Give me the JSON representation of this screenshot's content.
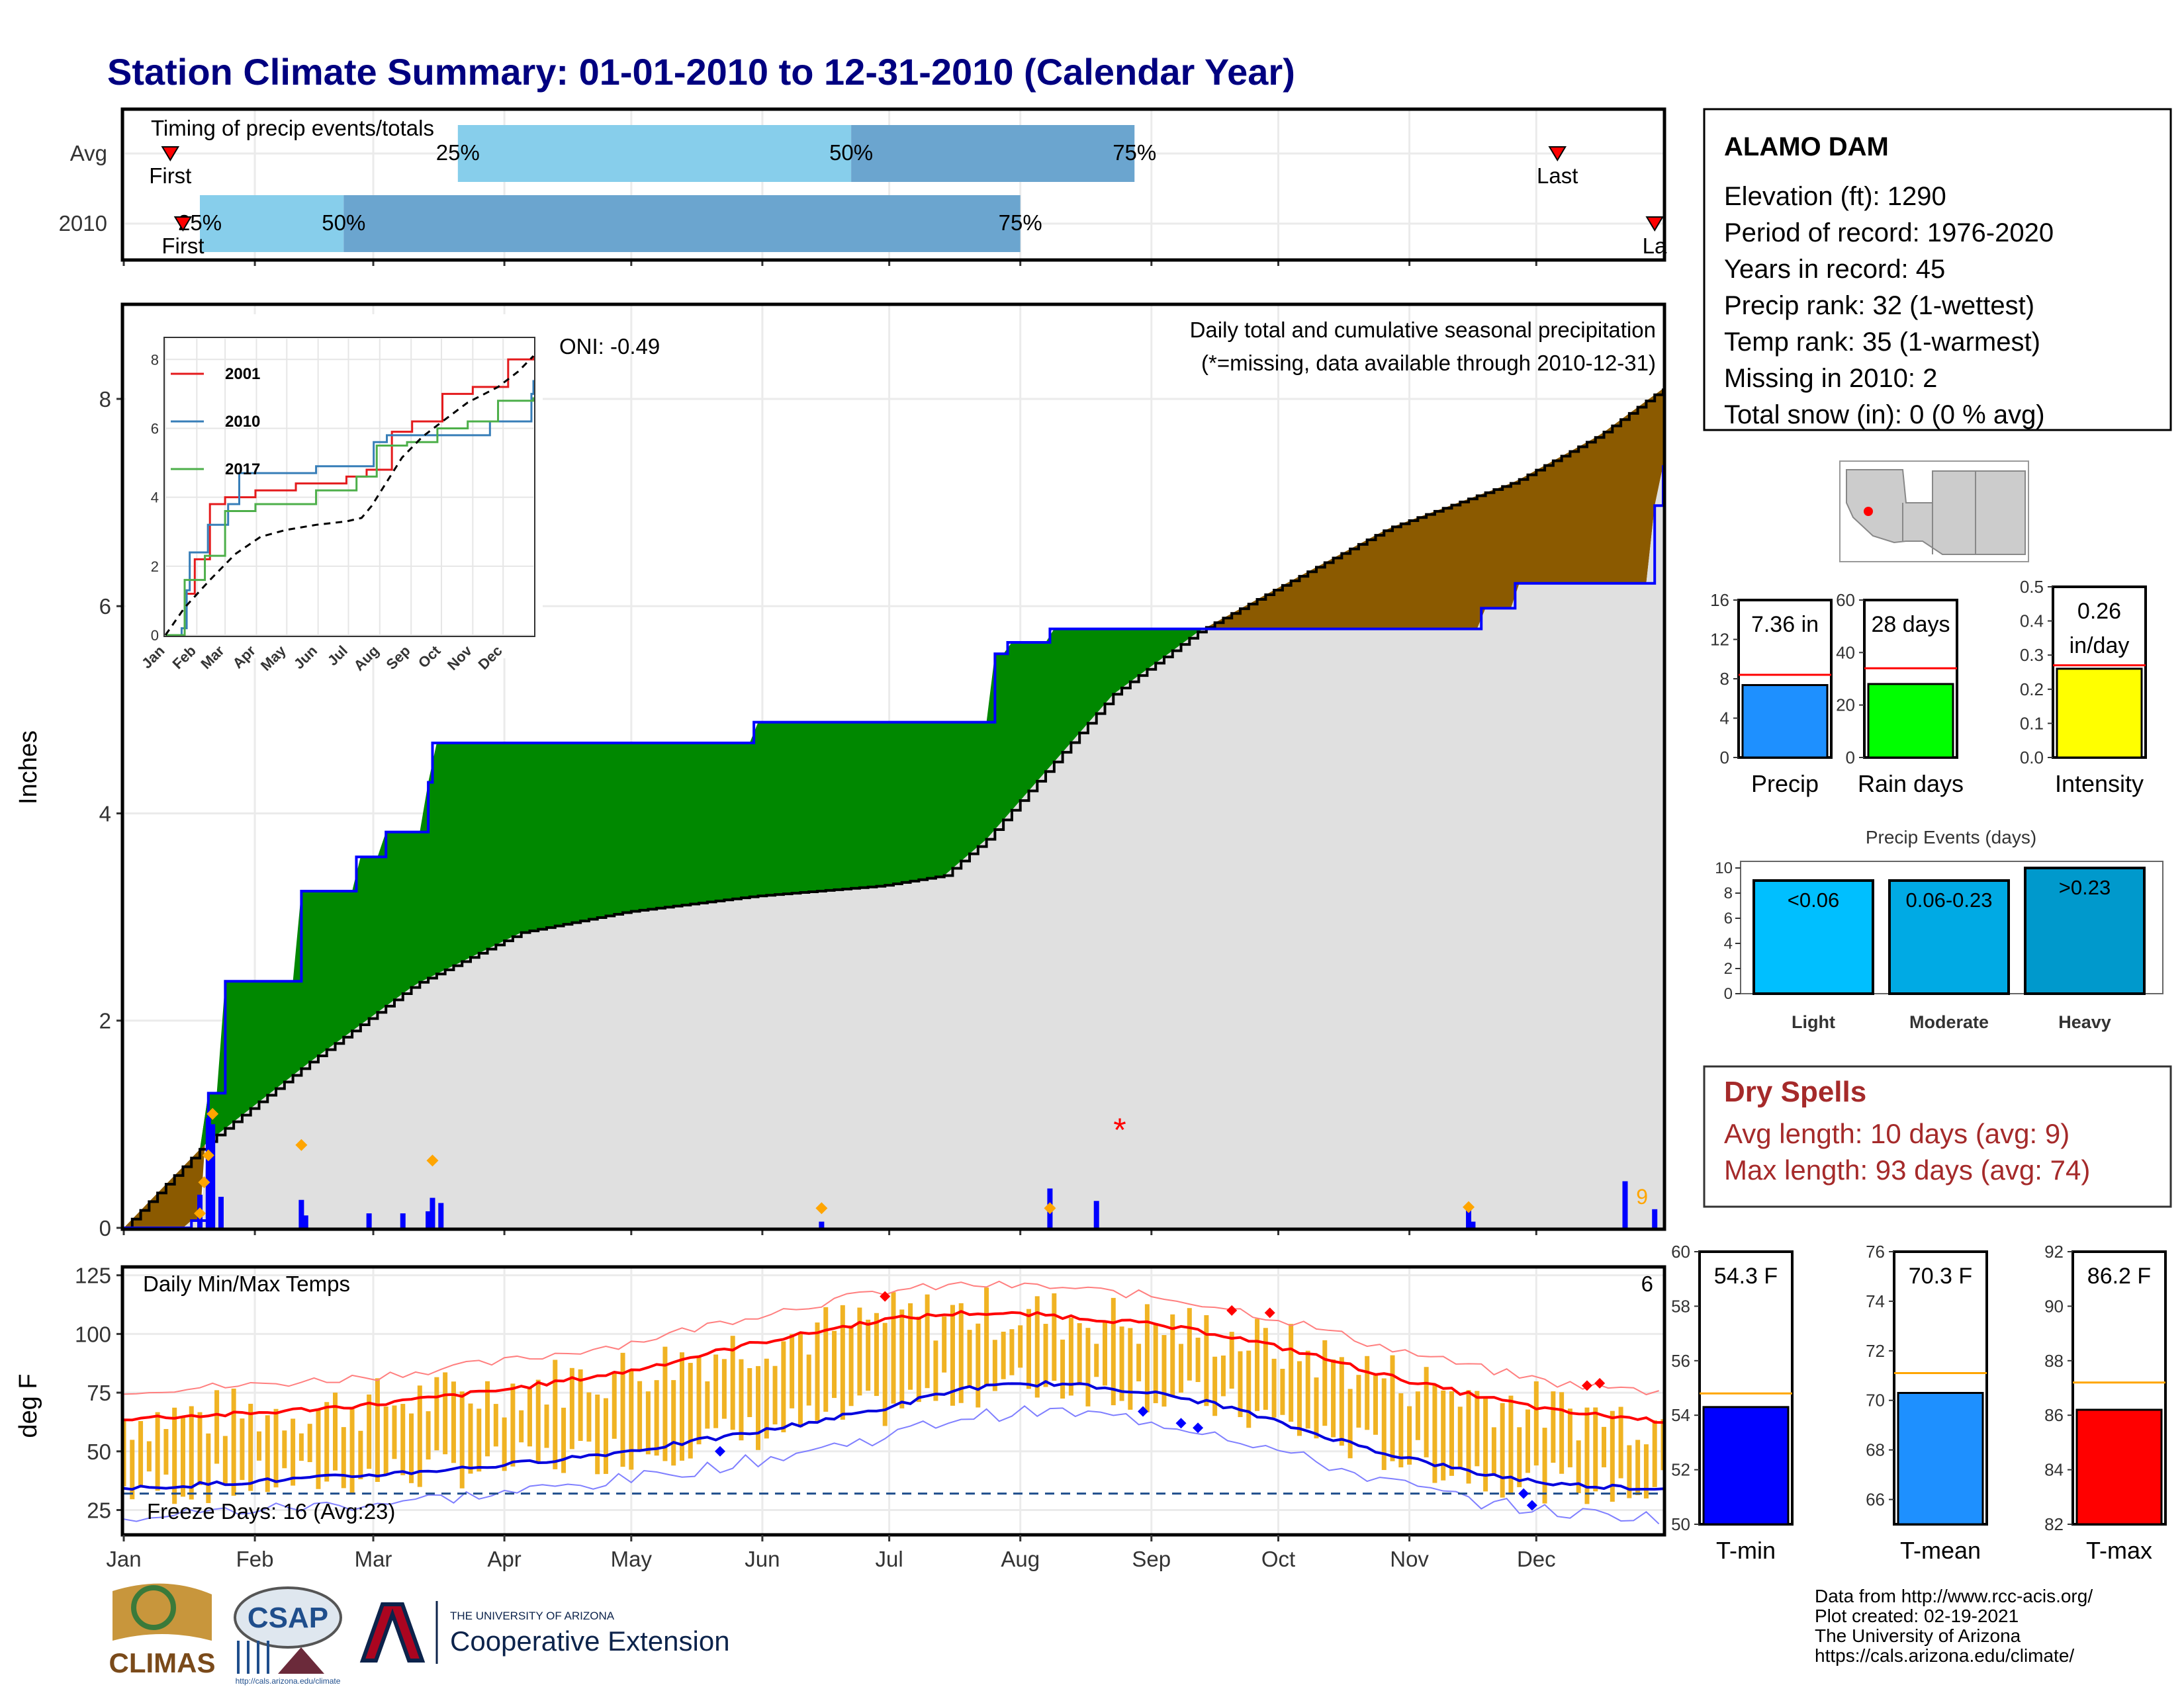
{
  "title": "Station Climate Summary: 01-01-2010 to 12-31-2010 (Calendar Year)",
  "timing": {
    "title": "Timing of precip events/totals",
    "rows": [
      {
        "label": "Avg",
        "first": "First",
        "last": "Last",
        "pct": [
          "25%",
          "50%",
          "75%"
        ],
        "first_day": 12,
        "last_day": 340,
        "p25": 80,
        "p50": 173,
        "p75": 240
      },
      {
        "label": "2010",
        "first": "First",
        "last": "La",
        "pct": [
          "25%",
          "50%",
          "75%"
        ],
        "first_day": 15,
        "last_day": 363,
        "p25": 19,
        "p50": 53,
        "p75": 213
      }
    ]
  },
  "months": [
    "Jan",
    "Feb",
    "Mar",
    "Apr",
    "May",
    "Jun",
    "Jul",
    "Aug",
    "Sep",
    "Oct",
    "Nov",
    "Dec"
  ],
  "precip_panel": {
    "ylabel": "Inches",
    "yticks": [
      "0",
      "2",
      "4",
      "6",
      "8"
    ],
    "oni": "ONI: -0.49",
    "note1": "Daily total and cumulative seasonal precipitation",
    "note2": "(*=missing, data available through 2010-12-31)",
    "count_label": "9",
    "missing_marker": "*",
    "colors": {
      "wetter": "#008800",
      "drier": "#8b5a00",
      "avg_fill": "#e0e0e0",
      "line": "#0000ff",
      "diamond": "#ffa500"
    }
  },
  "inset": {
    "yticks": [
      "0",
      "2",
      "4",
      "6",
      "8"
    ],
    "xticks": [
      "Jan",
      "Feb",
      "Mar",
      "Apr",
      "May",
      "Jun",
      "Jul",
      "Aug",
      "Sep",
      "Oct",
      "Nov",
      "Dec"
    ],
    "legend": [
      {
        "name": "2001",
        "color": "#e41a1c"
      },
      {
        "name": "2010",
        "color": "#377eb8"
      },
      {
        "name": "2017",
        "color": "#4daf4a"
      }
    ]
  },
  "temp_panel": {
    "ylabel": "deg F",
    "yticks": [
      "25",
      "50",
      "75",
      "100",
      "125"
    ],
    "title": "Daily Min/Max Temps",
    "count_label": "6",
    "freeze": "Freeze Days: 16 (Avg:23)",
    "colors": {
      "bars": "#f0b323",
      "max": "#ff0000",
      "min": "#0000dd"
    }
  },
  "station": {
    "name": "ALAMO DAM",
    "lines": [
      "Elevation (ft): 1290",
      "Period of record: 1976-2020",
      "Years in record: 45",
      "Precip rank: 32 (1-wettest)",
      "Temp rank: 35 (1-warmest)",
      "Missing in 2010: 2",
      "Total snow (in): 0 (0 % avg)"
    ]
  },
  "mini_bars": [
    {
      "label": "Precip",
      "value_text": "7.36 in",
      "value": 7.36,
      "avg": 8.4,
      "max": 16,
      "yticks": [
        "0",
        "4",
        "8",
        "12",
        "16"
      ],
      "color": "#1e90ff"
    },
    {
      "label": "Rain days",
      "value_text": "28 days",
      "value": 28,
      "avg": 34,
      "max": 60,
      "yticks": [
        "0",
        "20",
        "40",
        "60"
      ],
      "color": "#00ff00"
    },
    {
      "label": "Intensity",
      "value_text": "0.26",
      "value_text2": "in/day",
      "value": 0.26,
      "avg": 0.27,
      "max": 0.5,
      "yticks": [
        "0.0",
        "0.1",
        "0.2",
        "0.3",
        "0.4",
        "0.5"
      ],
      "color": "#ffff00"
    }
  ],
  "events": {
    "title": "Precip Events (days)",
    "yticks": [
      "0",
      "2",
      "4",
      "6",
      "8",
      "10"
    ],
    "bars": [
      {
        "cat": "Light",
        "label": "<0.06",
        "value": 9,
        "color": "#00bfff"
      },
      {
        "cat": "Moderate",
        "label": "0.06-0.23",
        "value": 9,
        "color": "#00aae4"
      },
      {
        "cat": "Heavy",
        "label": ">0.23",
        "value": 10,
        "color": "#0099cc"
      }
    ]
  },
  "dry_spells": {
    "title": "Dry Spells",
    "avg": "Avg length: 10 days (avg: 9)",
    "max": "Max length: 93 days (avg: 74)"
  },
  "temp_bars": [
    {
      "label": "T-min",
      "value_text": "54.3 F",
      "value": 54.3,
      "avg": 54.8,
      "min": 50,
      "max": 60,
      "yticks": [
        "50",
        "52",
        "54",
        "56",
        "58",
        "60"
      ],
      "color": "#0000ff"
    },
    {
      "label": "T-mean",
      "value_text": "70.3 F",
      "value": 70.3,
      "avg": 71.1,
      "min": 65,
      "max": 76,
      "yticks": [
        "66",
        "68",
        "70",
        "72",
        "74",
        "76"
      ],
      "color": "#1e90ff"
    },
    {
      "label": "T-max",
      "value_text": "86.2 F",
      "value": 86.2,
      "avg": 87.2,
      "min": 82,
      "max": 92,
      "yticks": [
        "82",
        "84",
        "86",
        "88",
        "90",
        "92"
      ],
      "color": "#ff0000"
    }
  ],
  "footer": {
    "credits": [
      "Data from http://www.rcc-acis.org/",
      "Plot created: 02-19-2021",
      "The University of Arizona",
      "https://cals.arizona.edu/climate/"
    ],
    "logo1": "CLIMAS",
    "logo2": "CSAP",
    "logo2_url": "http://cals.arizona.edu/climate",
    "ua_small": "THE UNIVERSITY OF ARIZONA",
    "ua_big": "Cooperative Extension"
  },
  "chart_data": [
    {
      "type": "area",
      "title": "Daily total and cumulative seasonal precipitation",
      "ylabel": "Inches",
      "ylim": [
        0,
        8.9
      ],
      "xlim": [
        "Jan 1",
        "Dec 31"
      ],
      "grid": true,
      "series": [
        {
          "name": "2010",
          "x_day": [
            1,
            17,
            21,
            25,
            43,
            56,
            63,
            73,
            74,
            150,
            150,
            207,
            210,
            220,
            231,
            232,
            255,
            322,
            330,
            332,
            340,
            340,
            355,
            362,
            363,
            365
          ],
          "y": [
            0,
            0.07,
            1.3,
            2.38,
            3.25,
            3.58,
            3.82,
            4.3,
            4.68,
            4.74,
            4.88,
            5.54,
            5.65,
            5.78,
            5.78,
            5.78,
            5.78,
            5.98,
            6.22,
            6.22,
            6.22,
            6.22,
            6.22,
            6.22,
            6.97,
            7.36
          ]
        },
        {
          "x_day": [
            1,
            20,
            45,
            70,
            95,
            120,
            150,
            180,
            195,
            205,
            220,
            235,
            255,
            275,
            300,
            330,
            350,
            365
          ],
          "y": [
            0,
            0.8,
            1.6,
            2.35,
            2.85,
            3.05,
            3.2,
            3.3,
            3.4,
            3.75,
            4.45,
            5.15,
            5.75,
            6.2,
            6.75,
            7.2,
            7.65,
            8.1
          ]
        }
      ],
      "daily_bars_x_day": [
        19,
        21,
        22,
        24,
        43,
        44,
        59,
        67,
        73,
        74,
        76,
        166,
        220,
        231,
        319,
        320,
        356,
        363
      ],
      "daily_bars_in": [
        0.32,
        1.06,
        1.0,
        0.3,
        0.27,
        0.12,
        0.14,
        0.14,
        0.16,
        0.29,
        0.24,
        0.06,
        0.38,
        0.26,
        0.2,
        0.06,
        0.45,
        0.18
      ]
    },
    {
      "type": "line",
      "title": "Daily Min/Max Temps",
      "ylabel": "deg F",
      "ylim": [
        15,
        128
      ],
      "series": [
        {
          "x_day": [
            1,
            30,
            60,
            90,
            120,
            150,
            180,
            200,
            220,
            240,
            260,
            280,
            300,
            320,
            340,
            365
          ],
          "y": [
            64,
            66,
            70,
            76,
            84,
            96,
            106,
            109,
            108,
            105,
            100,
            92,
            82,
            74,
            67,
            63
          ]
        },
        {
          "x_day": [
            1,
            30,
            60,
            90,
            120,
            150,
            180,
            200,
            220,
            240,
            260,
            280,
            300,
            320,
            340,
            365
          ],
          "y": [
            34,
            37,
            40,
            44,
            50,
            58,
            68,
            77,
            79,
            76,
            70,
            59,
            49,
            41,
            36,
            34
          ]
        }
      ]
    }
  ]
}
